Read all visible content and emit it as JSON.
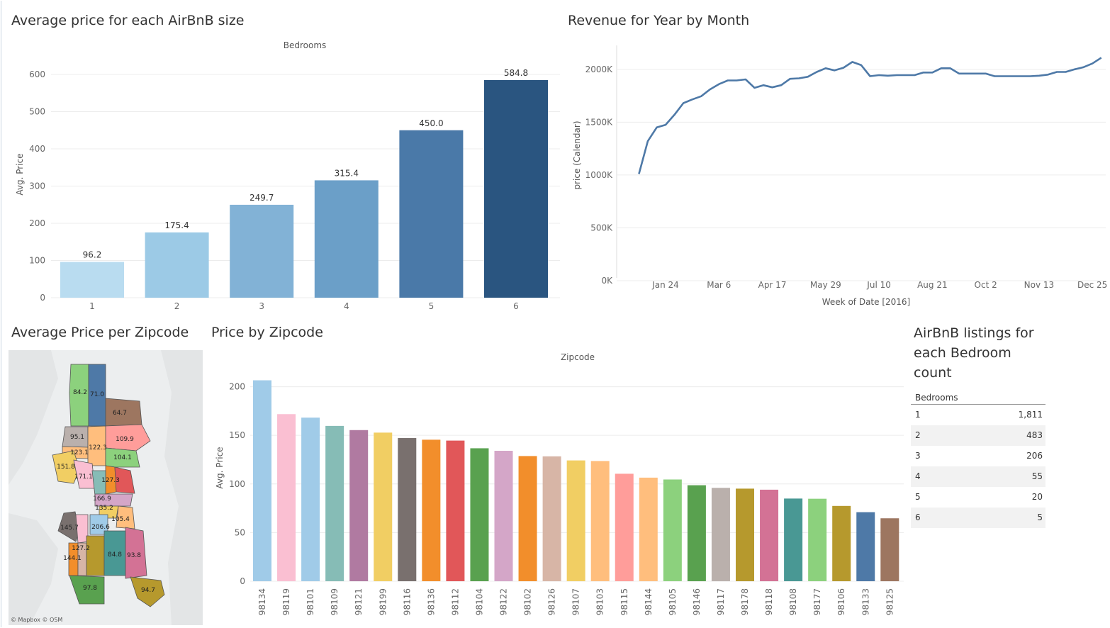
{
  "titles": {
    "bedroom_price": "Average price for each AirBnB size",
    "revenue": "Revenue for Year by Month",
    "zip_map": "Average Price per Zipcode",
    "zip_price": "Price by Zipcode",
    "listings": "AirBnB listings for each Bedroom count"
  },
  "map_credit": "© Mapbox © OSM",
  "colors": {
    "bedroom_bars": [
      "#b9dcf0",
      "#9ccae6",
      "#82b2d6",
      "#6b9fc8",
      "#4a79a8",
      "#2a5580"
    ],
    "revenue_line": "#4e79a7",
    "zip_bars": [
      "#a0cbe8",
      "#fabfd2",
      "#a0cbe8",
      "#86bcb6",
      "#b07aa1",
      "#f1ce63",
      "#79706e",
      "#f28e2b",
      "#e15759",
      "#59a14f",
      "#d4a6c8",
      "#f28e2b",
      "#d7b5a6",
      "#f1ce63",
      "#ffbe7d",
      "#ff9d9a",
      "#ffbe7d",
      "#8cd17d",
      "#59a14f",
      "#bab0ac",
      "#b6992d",
      "#d37295",
      "#499894",
      "#8cd17d",
      "#b6992d",
      "#4e79a7",
      "#9d7660"
    ]
  },
  "chart_data": [
    {
      "type": "bar",
      "title": "Average price for each AirBnB size",
      "header": "Bedrooms",
      "ylabel": "Avg. Price",
      "categories": [
        "1",
        "2",
        "3",
        "4",
        "5",
        "6"
      ],
      "values": [
        96.2,
        175.4,
        249.7,
        315.4,
        450.0,
        584.8
      ],
      "value_labels": [
        "96.2",
        "175.4",
        "249.7",
        "315.4",
        "450.0",
        "584.8"
      ],
      "ylim": [
        0,
        640
      ],
      "yticks": [
        0,
        100,
        200,
        300,
        400,
        500,
        600
      ],
      "grid": true
    },
    {
      "type": "line",
      "title": "Revenue for Year by Month",
      "xlabel": "Week of Date [2016]",
      "ylabel": "price (Calendar)",
      "xticks": [
        "Jan 24",
        "Mar 6",
        "Apr 17",
        "May 29",
        "Jul 10",
        "Aug 21",
        "Oct 2",
        "Nov 13",
        "Dec 25"
      ],
      "xtick_weeks": [
        4,
        10,
        16,
        22,
        28,
        34,
        40,
        46,
        52
      ],
      "yticks": [
        0,
        500000,
        1000000,
        1500000,
        2000000
      ],
      "ytick_labels": [
        "0K",
        "500K",
        "1000K",
        "1500K",
        "2000K"
      ],
      "ylim": [
        0,
        2200000
      ],
      "xlim": [
        -1.5,
        53.5
      ],
      "weeks": [
        1,
        2,
        3,
        4,
        5,
        6,
        7,
        8,
        9,
        10,
        11,
        12,
        13,
        14,
        15,
        16,
        17,
        18,
        19,
        20,
        21,
        22,
        23,
        24,
        25,
        26,
        27,
        28,
        29,
        30,
        31,
        32,
        33,
        34,
        35,
        36,
        37,
        38,
        39,
        40,
        41,
        42,
        43,
        44,
        45,
        46,
        47,
        48,
        49,
        50,
        51,
        52,
        53
      ],
      "values": [
        1010000,
        1320000,
        1450000,
        1475000,
        1570000,
        1680000,
        1715000,
        1745000,
        1810000,
        1860000,
        1895000,
        1895000,
        1905000,
        1825000,
        1850000,
        1830000,
        1850000,
        1910000,
        1915000,
        1930000,
        1975000,
        2010000,
        1990000,
        2015000,
        2070000,
        2040000,
        1935000,
        1945000,
        1940000,
        1945000,
        1945000,
        1945000,
        1970000,
        1970000,
        2010000,
        2010000,
        1960000,
        1960000,
        1960000,
        1960000,
        1935000,
        1935000,
        1935000,
        1935000,
        1935000,
        1940000,
        1950000,
        1975000,
        1975000,
        2000000,
        2020000,
        2055000,
        2110000
      ],
      "grid": true
    },
    {
      "type": "bar",
      "title": "Price by Zipcode",
      "header": "Zipcode",
      "ylabel": "Avg. Price",
      "categories": [
        "98134",
        "98119",
        "98101",
        "98109",
        "98121",
        "98199",
        "98116",
        "98136",
        "98112",
        "98104",
        "98122",
        "98102",
        "98126",
        "98107",
        "98103",
        "98115",
        "98144",
        "98105",
        "98146",
        "98117",
        "98178",
        "98118",
        "98108",
        "98177",
        "98106",
        "98133",
        "98125"
      ],
      "values": [
        206.6,
        171.8,
        168.2,
        159.7,
        155.4,
        152.8,
        147.2,
        145.5,
        144.6,
        136.7,
        134.1,
        128.7,
        128.4,
        124.2,
        123.6,
        110.5,
        106.5,
        104.6,
        98.7,
        96.0,
        95.2,
        94.1,
        85.0,
        84.8,
        77.4,
        71.0,
        64.7
      ],
      "ylim": [
        0,
        215
      ],
      "yticks": [
        0,
        50,
        100,
        150,
        200
      ],
      "grid": true
    },
    {
      "type": "table",
      "title": "AirBnB listings for each Bedroom count",
      "header": "Bedrooms",
      "rows": [
        {
          "bedrooms": "1",
          "count": "1,811"
        },
        {
          "bedrooms": "2",
          "count": "483"
        },
        {
          "bedrooms": "3",
          "count": "206"
        },
        {
          "bedrooms": "4",
          "count": "55"
        },
        {
          "bedrooms": "5",
          "count": "20"
        },
        {
          "bedrooms": "6",
          "count": "5"
        }
      ]
    },
    {
      "type": "map",
      "title": "Average Price per Zipcode",
      "region_labels": [
        "84.2",
        "71.0",
        "64.7",
        "95.1",
        "109.9",
        "123.1",
        "122.3",
        "104.1",
        "151.8",
        "171.1",
        "127.3",
        "166.9",
        "135.2",
        "105.4",
        "145.7",
        "206.6",
        "127.2",
        "144.1",
        "84.8",
        "93.8",
        "97.8",
        "94.7"
      ]
    }
  ]
}
